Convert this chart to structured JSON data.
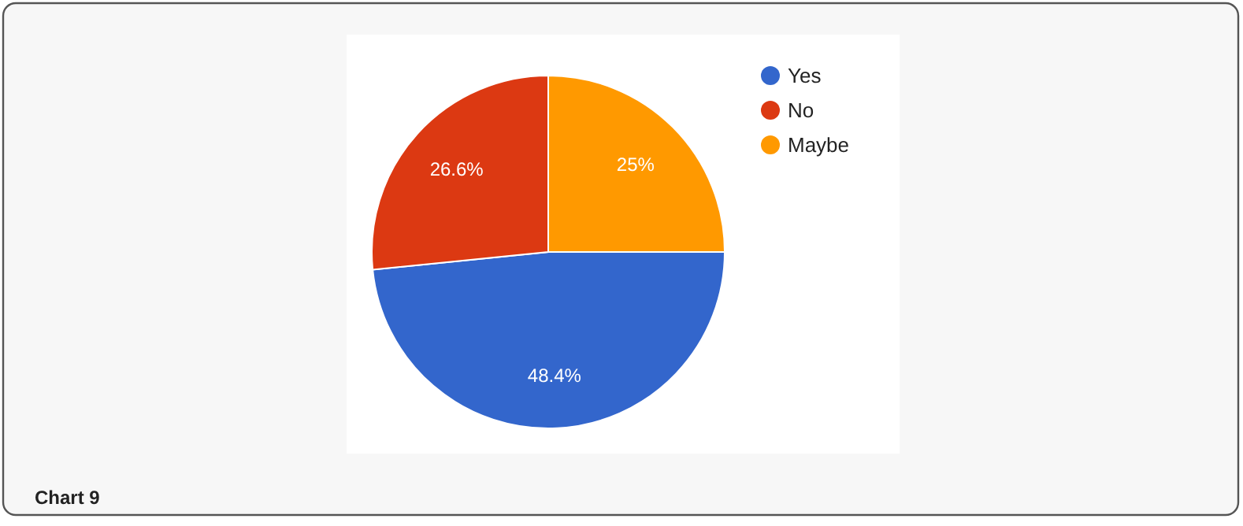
{
  "chart_data": {
    "type": "pie",
    "categories": [
      "Yes",
      "No",
      "Maybe"
    ],
    "values": [
      48.4,
      26.6,
      25
    ],
    "value_labels": [
      "48.4%",
      "26.6%",
      "25%"
    ],
    "colors": [
      "#3366cc",
      "#dc3912",
      "#ff9900"
    ],
    "legend": "right",
    "annotations": [
      "Chart 9"
    ]
  }
}
